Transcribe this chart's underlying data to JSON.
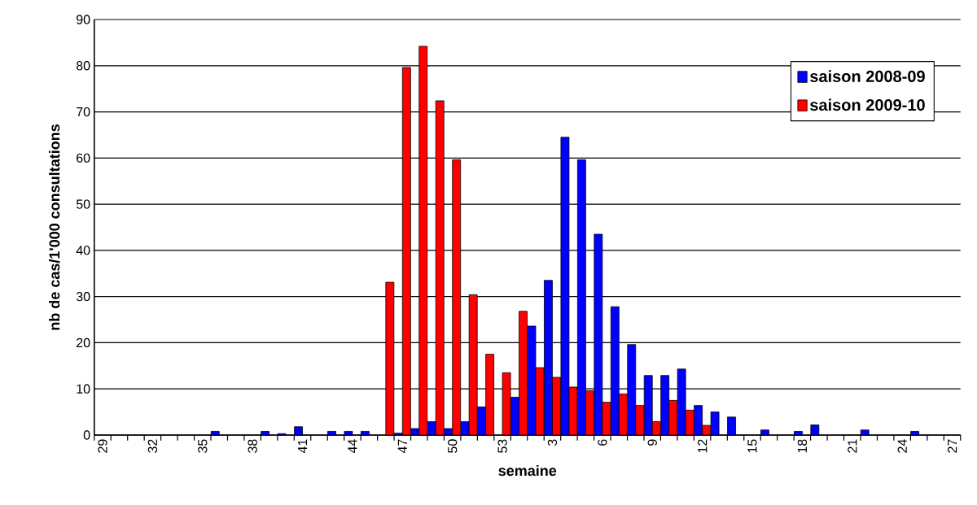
{
  "chart_data": {
    "type": "bar",
    "xlabel": "semaine",
    "ylabel": "nb de cas/1'000 consultations",
    "categories": [
      "29",
      null,
      null,
      "32",
      null,
      null,
      "35",
      null,
      null,
      "38",
      null,
      null,
      "41",
      null,
      null,
      "44",
      null,
      null,
      "47",
      null,
      null,
      "50",
      null,
      null,
      "53",
      null,
      null,
      "3",
      null,
      null,
      "6",
      null,
      null,
      "9",
      null,
      null,
      "12",
      null,
      null,
      "15",
      null,
      null,
      "18",
      null,
      null,
      "21",
      null,
      null,
      "24",
      null,
      null,
      "27"
    ],
    "series": [
      {
        "name": "saison 2008-09",
        "color": "#0000ff",
        "values": [
          null,
          null,
          null,
          null,
          null,
          null,
          null,
          0.8,
          null,
          null,
          0.8,
          0.3,
          1.8,
          null,
          0.8,
          0.8,
          0.8,
          null,
          0.4,
          1.4,
          2.9,
          1.4,
          2.9,
          6.1,
          null,
          8.2,
          23.6,
          33.5,
          64.5,
          59.6,
          43.5,
          27.8,
          19.6,
          12.9,
          12.9,
          14.3,
          6.4,
          5.0,
          3.9,
          null,
          1.1,
          null,
          0.8,
          2.2,
          null,
          null,
          1.1,
          null,
          null,
          0.8,
          null,
          null
        ]
      },
      {
        "name": "saison 2009-10",
        "color": "#ff0000",
        "values": [
          null,
          null,
          null,
          null,
          null,
          null,
          null,
          null,
          null,
          null,
          null,
          null,
          null,
          null,
          null,
          null,
          null,
          33.1,
          79.6,
          84.2,
          72.4,
          59.6,
          30.4,
          17.5,
          13.5,
          26.8,
          14.6,
          12.5,
          10.4,
          9.6,
          7.1,
          8.9,
          6.4,
          2.9,
          7.5,
          5.4,
          2.1,
          null,
          null,
          null,
          null,
          null,
          null,
          null,
          null,
          null,
          null,
          null,
          null,
          null,
          null,
          null
        ]
      }
    ],
    "ylim": [
      0,
      90
    ],
    "yticks": [
      0,
      10,
      20,
      30,
      40,
      50,
      60,
      70,
      80,
      90
    ],
    "grid": "y",
    "legend": "top right"
  }
}
